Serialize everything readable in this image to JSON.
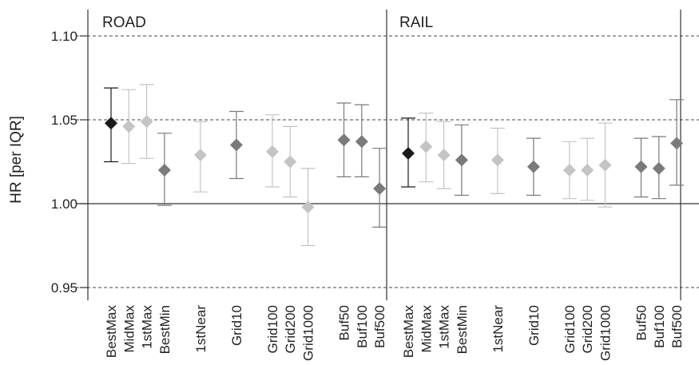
{
  "chart_data": {
    "type": "scatter",
    "subtype": "forest-plot with error bars",
    "ylabel": "HR [per IQR]",
    "ylim": [
      0.95,
      1.1
    ],
    "yticks": [
      "0.95",
      "1.00",
      "1.05",
      "1.10"
    ],
    "dashed_reference_lines": [
      0.95,
      1.05,
      1.1
    ],
    "solid_reference_line": 1.0,
    "panels": [
      {
        "title": "ROAD",
        "points": [
          {
            "label": "BestMax",
            "group": 0,
            "hr": 1.048,
            "lo": 1.025,
            "hi": 1.069,
            "color": "#1a1a1a"
          },
          {
            "label": "MidMax",
            "group": 0,
            "hr": 1.046,
            "lo": 1.024,
            "hi": 1.068,
            "color": "#c4c4c4"
          },
          {
            "label": "1stMax",
            "group": 0,
            "hr": 1.049,
            "lo": 1.027,
            "hi": 1.071,
            "color": "#c4c4c4"
          },
          {
            "label": "BestMin",
            "group": 0,
            "hr": 1.02,
            "lo": 0.999,
            "hi": 1.042,
            "color": "#7a7a7a"
          },
          {
            "label": "1stNear",
            "group": 1,
            "hr": 1.029,
            "lo": 1.007,
            "hi": 1.049,
            "color": "#c4c4c4"
          },
          {
            "label": "Grid10",
            "group": 2,
            "hr": 1.035,
            "lo": 1.015,
            "hi": 1.055,
            "color": "#7a7a7a"
          },
          {
            "label": "Grid100",
            "group": 3,
            "hr": 1.031,
            "lo": 1.01,
            "hi": 1.053,
            "color": "#c4c4c4"
          },
          {
            "label": "Grid200",
            "group": 3,
            "hr": 1.025,
            "lo": 1.004,
            "hi": 1.046,
            "color": "#c4c4c4"
          },
          {
            "label": "Grid1000",
            "group": 3,
            "hr": 0.998,
            "lo": 0.975,
            "hi": 1.021,
            "color": "#c4c4c4"
          },
          {
            "label": "Buf50",
            "group": 4,
            "hr": 1.038,
            "lo": 1.016,
            "hi": 1.06,
            "color": "#7a7a7a"
          },
          {
            "label": "Buf100",
            "group": 4,
            "hr": 1.037,
            "lo": 1.016,
            "hi": 1.059,
            "color": "#7a7a7a"
          },
          {
            "label": "Buf500",
            "group": 4,
            "hr": 1.009,
            "lo": 0.986,
            "hi": 1.033,
            "color": "#7a7a7a"
          }
        ]
      },
      {
        "title": "RAIL",
        "points": [
          {
            "label": "BestMax",
            "group": 0,
            "hr": 1.03,
            "lo": 1.01,
            "hi": 1.051,
            "color": "#1a1a1a"
          },
          {
            "label": "MidMax",
            "group": 0,
            "hr": 1.034,
            "lo": 1.013,
            "hi": 1.054,
            "color": "#c4c4c4"
          },
          {
            "label": "1stMax",
            "group": 0,
            "hr": 1.029,
            "lo": 1.009,
            "hi": 1.049,
            "color": "#c4c4c4"
          },
          {
            "label": "BestMin",
            "group": 0,
            "hr": 1.026,
            "lo": 1.005,
            "hi": 1.047,
            "color": "#7a7a7a"
          },
          {
            "label": "1stNear",
            "group": 1,
            "hr": 1.026,
            "lo": 1.006,
            "hi": 1.045,
            "color": "#c4c4c4"
          },
          {
            "label": "Grid10",
            "group": 2,
            "hr": 1.022,
            "lo": 1.005,
            "hi": 1.039,
            "color": "#7a7a7a"
          },
          {
            "label": "Grid100",
            "group": 3,
            "hr": 1.02,
            "lo": 1.003,
            "hi": 1.037,
            "color": "#c4c4c4"
          },
          {
            "label": "Grid200",
            "group": 3,
            "hr": 1.02,
            "lo": 1.002,
            "hi": 1.039,
            "color": "#c4c4c4"
          },
          {
            "label": "Grid1000",
            "group": 3,
            "hr": 1.023,
            "lo": 0.998,
            "hi": 1.048,
            "color": "#c4c4c4"
          },
          {
            "label": "Buf50",
            "group": 4,
            "hr": 1.022,
            "lo": 1.004,
            "hi": 1.039,
            "color": "#7a7a7a"
          },
          {
            "label": "Buf100",
            "group": 4,
            "hr": 1.021,
            "lo": 1.003,
            "hi": 1.04,
            "color": "#7a7a7a"
          },
          {
            "label": "Buf500",
            "group": 4,
            "hr": 1.036,
            "lo": 1.011,
            "hi": 1.062,
            "color": "#7a7a7a"
          }
        ]
      }
    ]
  }
}
